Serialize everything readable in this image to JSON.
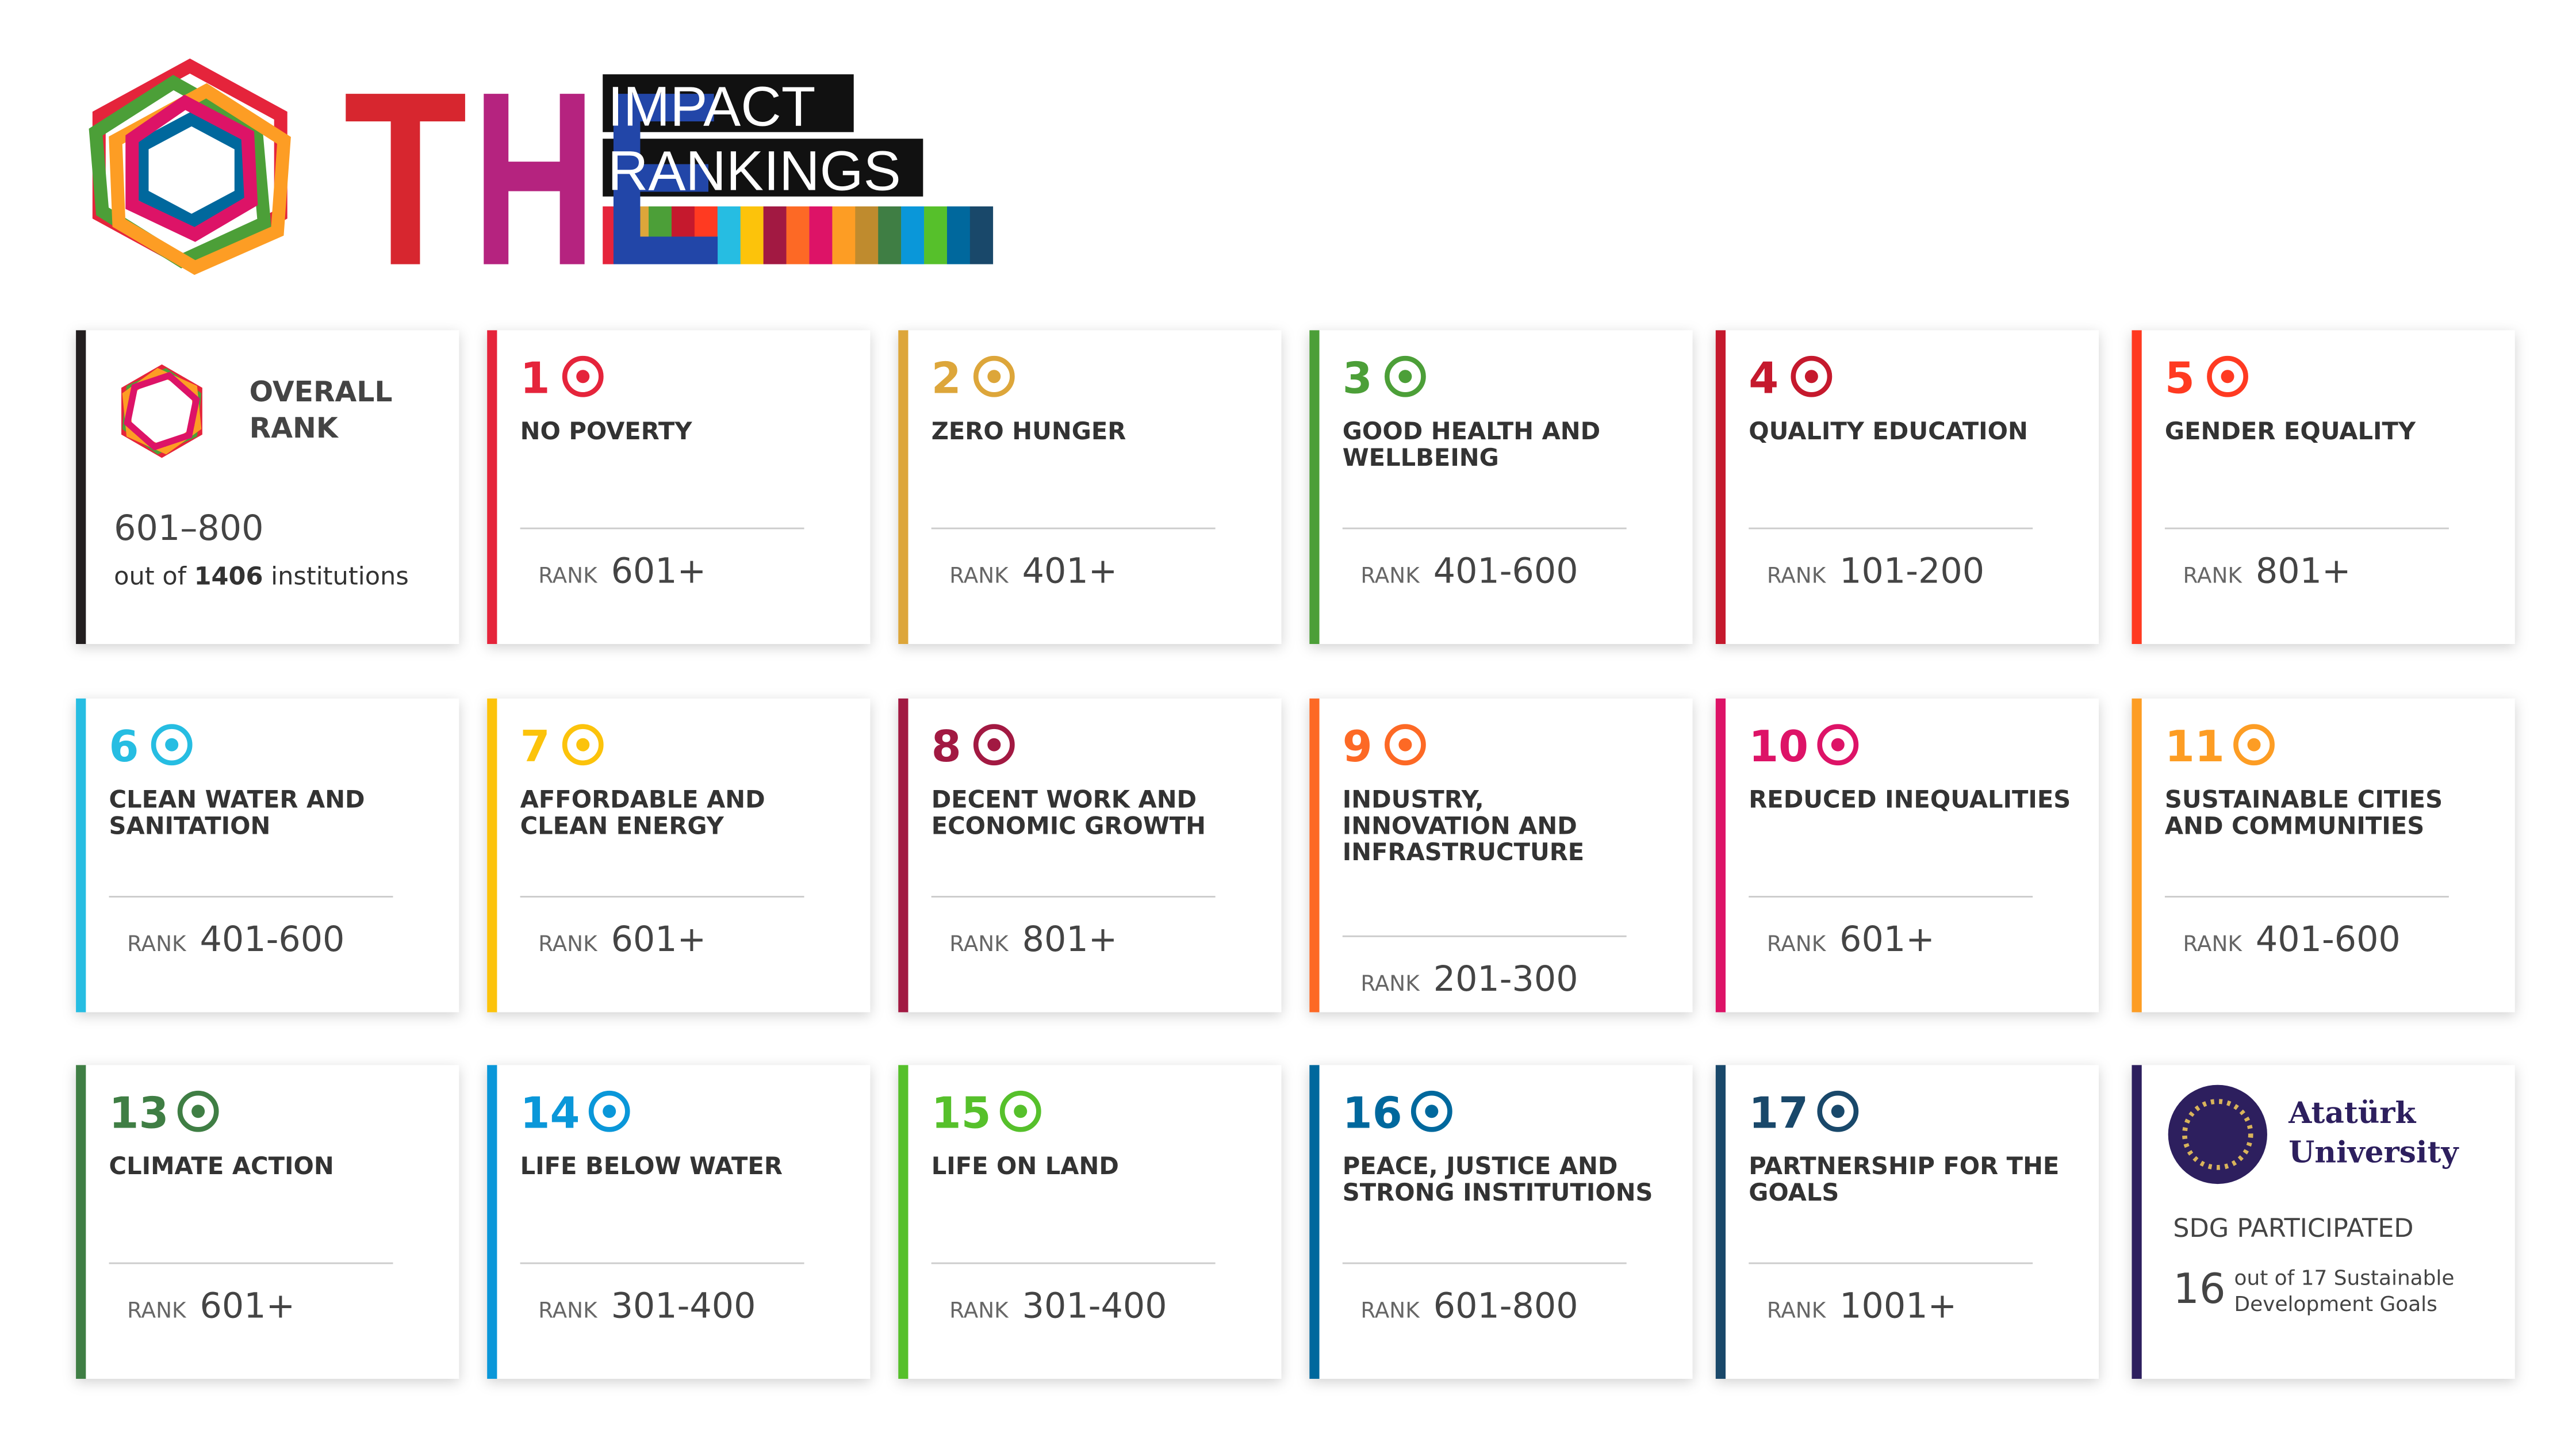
{
  "header": {
    "title_letters": [
      "T",
      "H",
      "E"
    ],
    "subtitle": [
      "IMPACT",
      "RANKINGS"
    ]
  },
  "overall": {
    "label": [
      "OVERALL",
      "RANK"
    ],
    "rank": "601–800",
    "note_start": "out of",
    "note_count": "1406",
    "note_end": "institutions"
  },
  "rank_label": "RANK",
  "cards": [
    {
      "number": 1,
      "title": [
        "NO POVERTY"
      ],
      "rank": "601+",
      "color": "#e5243b"
    },
    {
      "number": 2,
      "title": [
        "ZERO HUNGER"
      ],
      "rank": "401+",
      "color": "#dda63a"
    },
    {
      "number": 3,
      "title": [
        "GOOD HEALTH AND",
        "WELLBEING"
      ],
      "rank": "401-600",
      "color": "#4c9f38"
    },
    {
      "number": 4,
      "title": [
        "QUALITY EDUCATION"
      ],
      "rank": "101-200",
      "color": "#c5192d"
    },
    {
      "number": 5,
      "title": [
        "GENDER EQUALITY"
      ],
      "rank": "801+",
      "color": "#ff3a21"
    },
    {
      "number": 6,
      "title": [
        "CLEAN WATER AND",
        "SANITATION"
      ],
      "rank": "401-600",
      "color": "#26bde2"
    },
    {
      "number": 7,
      "title": [
        "AFFORDABLE AND",
        "CLEAN ENERGY"
      ],
      "rank": "601+",
      "color": "#fcc30b"
    },
    {
      "number": 8,
      "title": [
        "DECENT WORK AND",
        "ECONOMIC GROWTH"
      ],
      "rank": "801+",
      "color": "#a21942"
    },
    {
      "number": 9,
      "title": [
        "INDUSTRY,",
        "INNOVATION AND",
        "INFRASTRUCTURE"
      ],
      "rank": "201-300",
      "color": "#fd6925"
    },
    {
      "number": 10,
      "title": [
        "REDUCED INEQUALITIES"
      ],
      "rank": "601+",
      "color": "#dd1367"
    },
    {
      "number": 11,
      "title": [
        "SUSTAINABLE CITIES",
        "AND COMMUNITIES"
      ],
      "rank": "401-600",
      "color": "#fd9d24"
    },
    {
      "number": 13,
      "title": [
        "CLIMATE ACTION"
      ],
      "rank": "601+",
      "color": "#3f7e44"
    },
    {
      "number": 14,
      "title": [
        "LIFE BELOW WATER"
      ],
      "rank": "301-400",
      "color": "#0a97d9"
    },
    {
      "number": 15,
      "title": [
        "LIFE ON LAND"
      ],
      "rank": "301-400",
      "color": "#56c02b"
    },
    {
      "number": 16,
      "title": [
        "PEACE, JUSTICE AND",
        "STRONG INSTITUTIONS"
      ],
      "rank": "601-800",
      "color": "#00689d"
    },
    {
      "number": 17,
      "title": [
        "PARTNERSHIP FOR THE",
        "GOALS"
      ],
      "rank": "1001+",
      "color": "#19486a"
    }
  ],
  "university": {
    "name": [
      "Atatürk",
      "University"
    ],
    "label": "SDG PARTICIPATED",
    "count": "16",
    "note": [
      "out of 17 Sustainable",
      "Development Goals"
    ]
  }
}
